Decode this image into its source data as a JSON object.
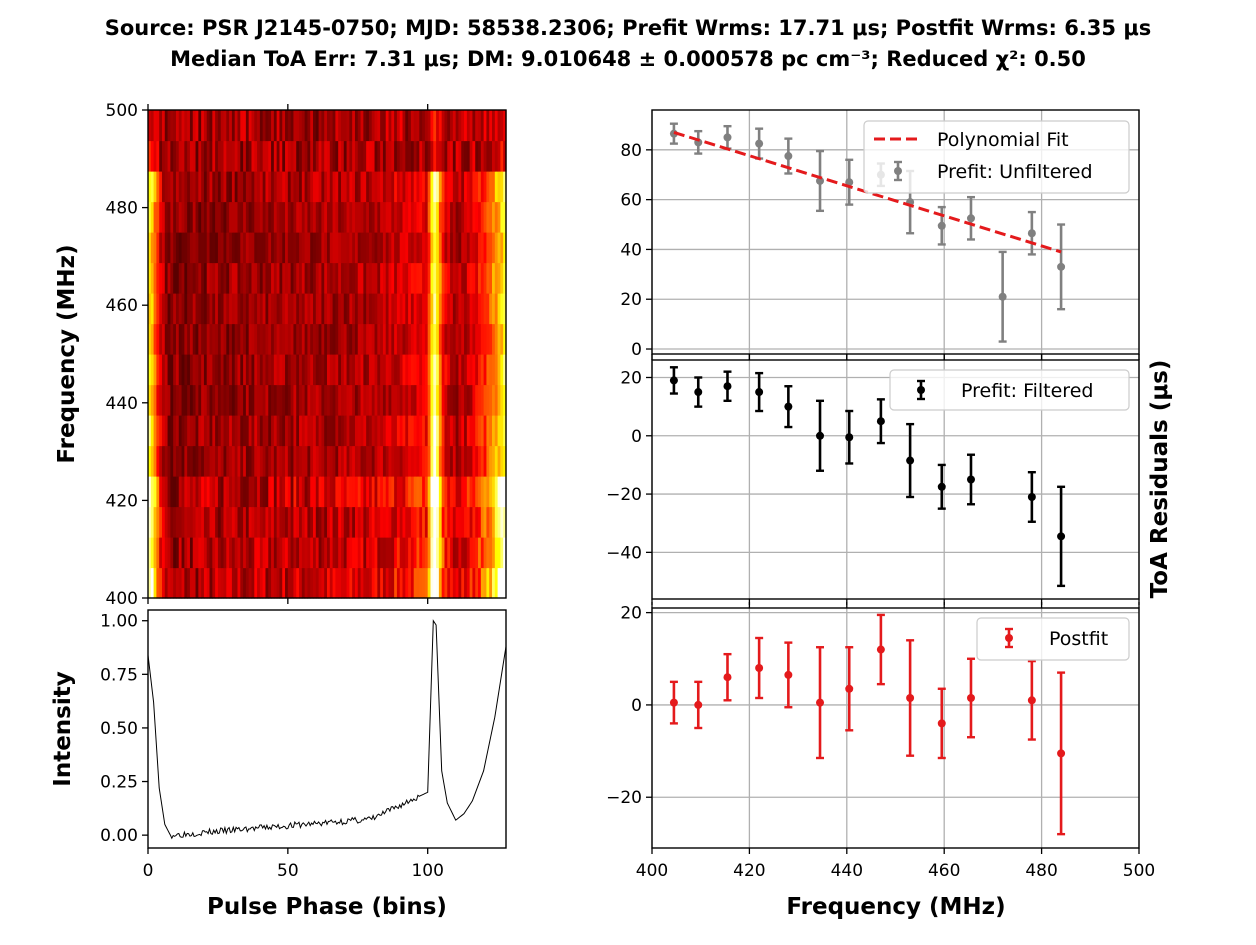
{
  "title": {
    "line1": "Source: PSR J2145-0750;  MJD: 58538.2306;  Prefit Wrms: 17.71 μs; Postfit Wrms: 6.35 μs",
    "line2": "Median ToA Err: 7.31 μs; DM: 9.010648 ± 0.000578 pc cm⁻³;  Reduced χ²: 0.50"
  },
  "colors": {
    "fit_line": "#e41a1c",
    "prefit_unfiltered": "#808080",
    "prefit_filtered": "#000000",
    "postfit": "#e41a1c",
    "grid": "#b0b0b0"
  },
  "chart_data": [
    {
      "id": "dynamic-spectrum",
      "type": "heatmap",
      "colormap": "hot",
      "xlabel": "",
      "ylabel": "Frequency (MHz)",
      "xlim": [
        0,
        128
      ],
      "ylim": [
        400,
        500
      ],
      "yticks": [
        400,
        420,
        440,
        460,
        480,
        500
      ],
      "xticks": [
        0,
        50,
        100
      ],
      "channel_edges_mhz": [
        400,
        406.25,
        412.5,
        418.75,
        425,
        431.25,
        437.5,
        443.75,
        450,
        456.25,
        462.5,
        468.75,
        475,
        481.25,
        487.5,
        493.75,
        500
      ],
      "channel_gain": [
        1.05,
        0.95,
        0.9,
        1.1,
        0.75,
        0.8,
        0.7,
        0.75,
        0.65,
        0.7,
        0.75,
        0.65,
        0.7,
        0.8,
        0.25,
        0.2
      ],
      "grid": false
    },
    {
      "id": "profile",
      "type": "line",
      "xlabel": "Pulse Phase (bins)",
      "ylabel": "Intensity",
      "xlim": [
        0,
        128
      ],
      "ylim": [
        -0.06,
        1.05
      ],
      "xticks": [
        0,
        50,
        100
      ],
      "yticks": [
        0.0,
        0.25,
        0.5,
        0.75,
        1.0
      ],
      "ytick_labels": [
        "0.00",
        "0.25",
        "0.50",
        "0.75",
        "1.00"
      ],
      "key_points": [
        [
          0,
          0.84
        ],
        [
          2,
          0.62
        ],
        [
          4,
          0.22
        ],
        [
          6,
          0.05
        ],
        [
          8,
          0.0
        ],
        [
          80,
          0.075
        ],
        [
          100,
          0.2
        ],
        [
          102,
          1.0
        ],
        [
          103,
          0.98
        ],
        [
          105,
          0.3
        ],
        [
          107,
          0.15
        ],
        [
          110,
          0.07
        ],
        [
          113,
          0.1
        ],
        [
          116,
          0.16
        ],
        [
          120,
          0.3
        ],
        [
          124,
          0.55
        ],
        [
          128,
          0.88
        ]
      ],
      "grid": false
    },
    {
      "id": "prefit-unfiltered",
      "type": "scatter",
      "xlabel": "",
      "ylabel": "",
      "xlim": [
        400,
        500
      ],
      "ylim": [
        -2,
        96
      ],
      "yticks": [
        0,
        20,
        40,
        60,
        80
      ],
      "grid": true,
      "legend_loc": "upper right",
      "fit": {
        "name": "Polynomial Fit",
        "x": [
          404.5,
          484
        ],
        "y": [
          87,
          39
        ]
      },
      "series": [
        {
          "name": "Prefit: Unfiltered",
          "x": [
            404.5,
            409.5,
            415.5,
            422,
            428,
            434.5,
            440.5,
            447,
            453,
            459.5,
            465.5,
            472,
            478,
            484
          ],
          "y": [
            86.5,
            83,
            85,
            82.5,
            77.5,
            67.5,
            67,
            70,
            59,
            49.5,
            52.5,
            21,
            46.5,
            33
          ],
          "err": [
            4,
            4.5,
            4.5,
            6,
            7,
            12,
            9,
            4.5,
            12.5,
            7.5,
            8.5,
            18,
            8.5,
            17
          ]
        }
      ]
    },
    {
      "id": "prefit-filtered",
      "type": "scatter",
      "xlabel": "",
      "ylabel": "ToA Residuals (μs)",
      "xlim": [
        400,
        500
      ],
      "ylim": [
        -56,
        26
      ],
      "yticks": [
        -40,
        -20,
        0,
        20
      ],
      "grid": true,
      "legend_loc": "upper right",
      "series": [
        {
          "name": "Prefit: Filtered",
          "x": [
            404.5,
            409.5,
            415.5,
            422,
            428,
            434.5,
            440.5,
            447,
            453,
            459.5,
            465.5,
            478,
            484
          ],
          "y": [
            19,
            15,
            17,
            15,
            10,
            0,
            -0.5,
            5,
            -8.5,
            -17.5,
            -15,
            -21,
            -34.5
          ],
          "err": [
            4.5,
            5,
            5,
            6.5,
            7,
            12,
            9,
            7.5,
            12.5,
            7.5,
            8.5,
            8.5,
            17
          ]
        }
      ]
    },
    {
      "id": "postfit",
      "type": "scatter",
      "xlabel": "Frequency (MHz)",
      "ylabel": "",
      "xlim": [
        400,
        500
      ],
      "ylim": [
        -31,
        21
      ],
      "xticks": [
        400,
        420,
        440,
        460,
        480,
        500
      ],
      "yticks": [
        -20,
        0,
        20
      ],
      "grid": true,
      "legend_loc": "upper right",
      "series": [
        {
          "name": "Postfit",
          "x": [
            404.5,
            409.5,
            415.5,
            422,
            428,
            434.5,
            440.5,
            447,
            453,
            459.5,
            465.5,
            478,
            484
          ],
          "y": [
            0.5,
            0,
            6,
            8,
            6.5,
            0.5,
            3.5,
            12,
            1.5,
            -4,
            1.5,
            1,
            -10.5
          ],
          "err": [
            4.5,
            5,
            5,
            6.5,
            7,
            12,
            9,
            7.5,
            12.5,
            7.5,
            8.5,
            8.5,
            17.5
          ]
        }
      ]
    }
  ]
}
